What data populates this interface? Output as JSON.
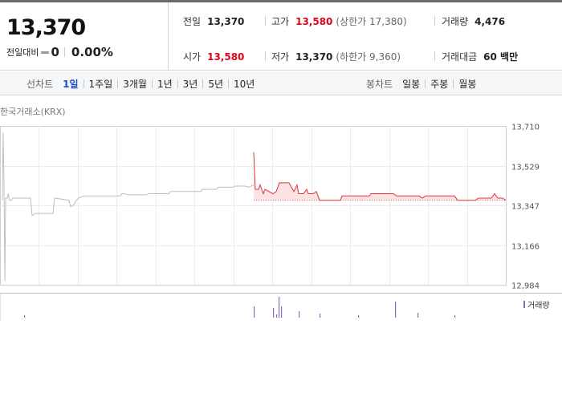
{
  "quote": {
    "price": "13,370",
    "change_label": "전일대비",
    "change_value": "0",
    "change_pct": "0.00%",
    "stats": {
      "prev_label": "전일",
      "prev_value": "13,370",
      "high_label": "고가",
      "high_value": "13,580",
      "upper_limit": "(상한가 17,380)",
      "volume_label": "거래량",
      "volume_value": "4,476",
      "open_label": "시가",
      "open_value": "13,580",
      "low_label": "저가",
      "low_value": "13,370",
      "lower_limit": "(하한가 9,360)",
      "amount_label": "거래대금",
      "amount_value": "60 백만"
    }
  },
  "tabs": {
    "line_label": "선차트",
    "line_periods": [
      "1일",
      "1주일",
      "3개월",
      "1년",
      "3년",
      "5년",
      "10년"
    ],
    "active_index": 0,
    "candle_label": "봉차트",
    "candle_periods": [
      "일봉",
      "주봉",
      "월봉"
    ]
  },
  "chart": {
    "source": "한국거래소(KRX)",
    "legend_volume": "거래량",
    "colors": {
      "up_line": "#e0343c",
      "up_fill": "#fbe3e4",
      "prev_line": "#bdbdbd",
      "volume": "#8a67c4"
    }
  },
  "chart_data": {
    "type": "line",
    "y_ticks": [
      "13,710",
      "13,529",
      "13,347",
      "13,166",
      "12,984"
    ],
    "ylim": [
      12984,
      13710
    ],
    "base_price": 13370,
    "grid": true
  }
}
